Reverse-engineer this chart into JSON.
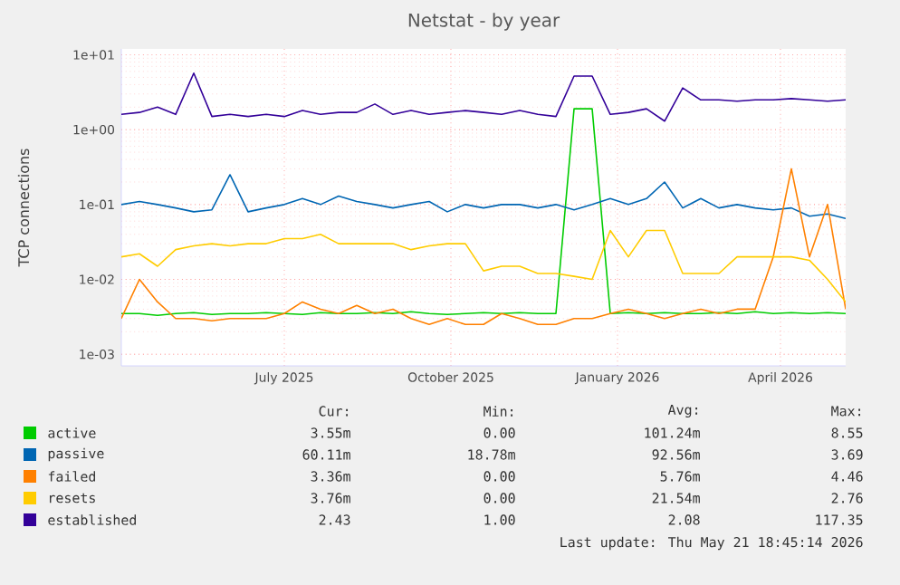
{
  "chart_data": {
    "type": "line",
    "title": "Netstat - by year",
    "ylabel": "TCP connections",
    "x": [
      "2025-04-02",
      "2025-04-12",
      "2025-04-22",
      "2025-05-02",
      "2025-05-12",
      "2025-05-22",
      "2025-06-01",
      "2025-06-11",
      "2025-06-21",
      "2025-07-01",
      "2025-07-11",
      "2025-07-21",
      "2025-07-31",
      "2025-08-10",
      "2025-08-20",
      "2025-08-30",
      "2025-09-09",
      "2025-09-19",
      "2025-09-29",
      "2025-10-09",
      "2025-10-19",
      "2025-10-29",
      "2025-11-08",
      "2025-11-18",
      "2025-11-28",
      "2025-12-08",
      "2025-12-18",
      "2025-12-28",
      "2026-01-07",
      "2026-01-17",
      "2026-01-27",
      "2026-02-06",
      "2026-02-16",
      "2026-02-26",
      "2026-03-08",
      "2026-03-18",
      "2026-03-28",
      "2026-04-07",
      "2026-04-17",
      "2026-04-27",
      "2026-05-07"
    ],
    "series": [
      {
        "name": "active",
        "color": "#00cc00",
        "values": [
          0.0035,
          0.0035,
          0.0033,
          0.0035,
          0.0036,
          0.0034,
          0.0035,
          0.0035,
          0.0036,
          0.0035,
          0.0034,
          0.0036,
          0.0035,
          0.0035,
          0.0036,
          0.0035,
          0.0037,
          0.0035,
          0.0034,
          0.0035,
          0.0036,
          0.0035,
          0.0036,
          0.0035,
          0.0035,
          1.9,
          1.9,
          0.0035,
          0.0036,
          0.0035,
          0.0036,
          0.0035,
          0.0035,
          0.0036,
          0.0035,
          0.0037,
          0.0035,
          0.0036,
          0.0035,
          0.0036,
          0.0035
        ]
      },
      {
        "name": "passive",
        "color": "#0066b3",
        "values": [
          0.1,
          0.11,
          0.1,
          0.09,
          0.08,
          0.085,
          0.25,
          0.08,
          0.09,
          0.1,
          0.12,
          0.1,
          0.13,
          0.11,
          0.1,
          0.09,
          0.1,
          0.11,
          0.08,
          0.1,
          0.09,
          0.1,
          0.1,
          0.09,
          0.1,
          0.085,
          0.1,
          0.12,
          0.1,
          0.12,
          0.2,
          0.09,
          0.12,
          0.09,
          0.1,
          0.09,
          0.085,
          0.09,
          0.07,
          0.075,
          0.065
        ]
      },
      {
        "name": "failed",
        "color": "#ff8000",
        "values": [
          0.003,
          0.01,
          0.005,
          0.003,
          0.003,
          0.0028,
          0.003,
          0.003,
          0.003,
          0.0035,
          0.005,
          0.004,
          0.0035,
          0.0045,
          0.0035,
          0.004,
          0.003,
          0.0025,
          0.003,
          0.0025,
          0.0025,
          0.0035,
          0.003,
          0.0025,
          0.0025,
          0.003,
          0.003,
          0.0035,
          0.004,
          0.0035,
          0.003,
          0.0035,
          0.004,
          0.0035,
          0.004,
          0.004,
          0.02,
          0.3,
          0.02,
          0.1,
          0.004
        ]
      },
      {
        "name": "resets",
        "color": "#ffcc00",
        "values": [
          0.02,
          0.022,
          0.015,
          0.025,
          0.028,
          0.03,
          0.028,
          0.03,
          0.03,
          0.035,
          0.035,
          0.04,
          0.03,
          0.03,
          0.03,
          0.03,
          0.025,
          0.028,
          0.03,
          0.03,
          0.013,
          0.015,
          0.015,
          0.012,
          0.012,
          0.011,
          0.01,
          0.045,
          0.02,
          0.045,
          0.045,
          0.012,
          0.012,
          0.012,
          0.02,
          0.02,
          0.02,
          0.02,
          0.018,
          0.01,
          0.005
        ]
      },
      {
        "name": "established",
        "color": "#330099",
        "values": [
          1.6,
          1.7,
          2.0,
          1.6,
          5.7,
          1.5,
          1.6,
          1.5,
          1.6,
          1.5,
          1.8,
          1.6,
          1.7,
          1.7,
          2.2,
          1.6,
          1.8,
          1.6,
          1.7,
          1.8,
          1.7,
          1.6,
          1.8,
          1.6,
          1.5,
          5.2,
          5.2,
          1.6,
          1.7,
          1.9,
          1.3,
          3.6,
          2.5,
          2.5,
          2.4,
          2.5,
          2.5,
          2.6,
          2.5,
          2.4,
          2.5
        ]
      }
    ],
    "xlim": [
      "2025-04-02",
      "2026-05-07"
    ],
    "xticks": [
      {
        "value": "2025-07-01",
        "label": "July 2025"
      },
      {
        "value": "2025-10-01",
        "label": "October 2025"
      },
      {
        "value": "2026-01-01",
        "label": "January 2026"
      },
      {
        "value": "2026-04-01",
        "label": "April 2026"
      }
    ],
    "ylim": [
      0.0007,
      12
    ],
    "yticks": [
      {
        "value": 0.001,
        "label": "1e-03"
      },
      {
        "value": 0.01,
        "label": "1e-02"
      },
      {
        "value": 0.1,
        "label": "1e-01"
      },
      {
        "value": 1,
        "label": "1e+00"
      },
      {
        "value": 10,
        "label": "1e+01"
      }
    ],
    "log": "y",
    "grid": true,
    "legend": "bottom",
    "annotations": [
      "Cur:",
      "Min:",
      "Avg:",
      "Max:",
      "3.55m",
      "0.00",
      "101.24m",
      "8.55",
      "60.11m",
      "18.78m",
      "92.56m",
      "3.69",
      "3.36m",
      "0.00",
      "5.76m",
      "4.46",
      "3.76m",
      "0.00",
      "21.54m",
      "2.76",
      "2.43",
      "1.00",
      "2.08",
      "117.35",
      "Last update: Thu May 21 18:45:14 2026"
    ]
  }
}
